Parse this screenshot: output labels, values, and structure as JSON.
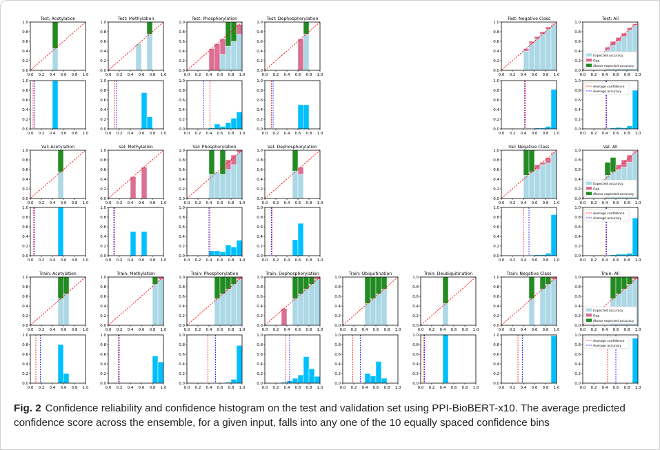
{
  "caption": {
    "label": "Fig. 2",
    "text": "Confidence reliability and confidence histogram on the test and validation set using PPI-BioBERT-x10. The average predicted confidence score across the ensemble, for a given input, falls into any one of the 10 equally spaced confidence bins"
  },
  "colors": {
    "expected": "#add8e6",
    "gap": "#db7093",
    "above": "#228b22",
    "hist": "#00bfff",
    "conf_line": "#ff0000",
    "acc_line": "#0000ff",
    "diag": "#ff0000"
  },
  "legend_labels": {
    "expected": "Expected accuracy",
    "gap": "Gap",
    "above": "Above expected accuracy",
    "avg_conf": "Average confidence",
    "avg_acc": "Average accuracy"
  },
  "x_ticks": [
    "0.0",
    "0.2",
    "0.4",
    "0.6",
    "0.8",
    "1.0"
  ],
  "y_ticks": [
    "0.0",
    "0.2",
    "0.4",
    "0.6",
    "0.8",
    "1.0"
  ],
  "chart_data": [
    {
      "type": "bar",
      "split": "Test",
      "title": "Test: Acetylation",
      "reliability": [
        {
          "bin": 0.45,
          "acc": 0.45,
          "conf": 1.0
        }
      ],
      "histogram": [
        {
          "bin": 0.45,
          "frac": 1.0
        }
      ],
      "avg_conf": 0.05,
      "avg_acc": 0.08
    },
    {
      "type": "bar",
      "split": "Test",
      "title": "Test: Methylation",
      "reliability": [
        {
          "bin": 0.55,
          "acc": 0.55,
          "conf": 0.55
        },
        {
          "bin": 0.75,
          "acc": 0.75,
          "conf": 1.0
        }
      ],
      "histogram": [
        {
          "bin": 0.65,
          "frac": 0.75
        },
        {
          "bin": 0.75,
          "frac": 0.25
        }
      ],
      "avg_conf": 0.12,
      "avg_acc": 0.15
    },
    {
      "type": "bar",
      "split": "Test",
      "title": "Test: Phosphorylation",
      "reliability": [
        {
          "bin": 0.45,
          "acc": 0.0,
          "conf": 0.45
        },
        {
          "bin": 0.55,
          "acc": 0.0,
          "conf": 0.55
        },
        {
          "bin": 0.65,
          "acc": 0.33,
          "conf": 0.65
        },
        {
          "bin": 0.75,
          "acc": 0.5,
          "conf": 1.0
        },
        {
          "bin": 0.85,
          "acc": 0.6,
          "conf": 1.0
        },
        {
          "bin": 0.95,
          "acc": 0.75,
          "conf": 0.95
        }
      ],
      "histogram": [
        {
          "bin": 0.45,
          "frac": 0.02
        },
        {
          "bin": 0.55,
          "frac": 0.1
        },
        {
          "bin": 0.65,
          "frac": 0.05
        },
        {
          "bin": 0.75,
          "frac": 0.13
        },
        {
          "bin": 0.85,
          "frac": 0.22
        },
        {
          "bin": 0.95,
          "frac": 0.35
        }
      ],
      "avg_conf": 0.42,
      "avg_acc": 0.3
    },
    {
      "type": "bar",
      "split": "Test",
      "title": "Test: Dephosphorylation",
      "reliability": [
        {
          "bin": 0.65,
          "acc": 0.0,
          "conf": 0.65
        },
        {
          "bin": 0.75,
          "acc": 0.75,
          "conf": 1.0
        }
      ],
      "histogram": [
        {
          "bin": 0.65,
          "frac": 0.5
        },
        {
          "bin": 0.75,
          "frac": 0.5
        }
      ],
      "avg_conf": 0.12,
      "avg_acc": 0.15
    },
    {
      "type": "bar",
      "split": "Test",
      "title": "Test: Negative Class",
      "reliability": [
        {
          "bin": 0.45,
          "acc": 0.4,
          "conf": 0.45
        },
        {
          "bin": 0.55,
          "acc": 0.55,
          "conf": 0.6
        },
        {
          "bin": 0.65,
          "acc": 0.65,
          "conf": 0.7
        },
        {
          "bin": 0.75,
          "acc": 0.75,
          "conf": 0.8
        },
        {
          "bin": 0.85,
          "acc": 0.85,
          "conf": 0.9
        },
        {
          "bin": 0.95,
          "acc": 0.95,
          "conf": 0.97
        }
      ],
      "histogram": [
        {
          "bin": 0.45,
          "frac": 0.0
        },
        {
          "bin": 0.55,
          "frac": 0.01
        },
        {
          "bin": 0.65,
          "frac": 0.02
        },
        {
          "bin": 0.75,
          "frac": 0.02
        },
        {
          "bin": 0.85,
          "frac": 0.05
        },
        {
          "bin": 0.95,
          "frac": 0.82
        }
      ],
      "avg_conf": 0.42,
      "avg_acc": 0.43
    },
    {
      "type": "bar",
      "split": "Test",
      "title": "Test:  All",
      "reliability": [
        {
          "bin": 0.45,
          "acc": 0.42,
          "conf": 0.48
        },
        {
          "bin": 0.55,
          "acc": 0.52,
          "conf": 0.6
        },
        {
          "bin": 0.65,
          "acc": 0.6,
          "conf": 0.68
        },
        {
          "bin": 0.75,
          "acc": 0.7,
          "conf": 0.77
        },
        {
          "bin": 0.85,
          "acc": 0.83,
          "conf": 0.88
        },
        {
          "bin": 0.95,
          "acc": 0.93,
          "conf": 0.96
        }
      ],
      "histogram": [
        {
          "bin": 0.45,
          "frac": 0.0
        },
        {
          "bin": 0.55,
          "frac": 0.02
        },
        {
          "bin": 0.65,
          "frac": 0.03
        },
        {
          "bin": 0.75,
          "frac": 0.02
        },
        {
          "bin": 0.85,
          "frac": 0.06
        },
        {
          "bin": 0.95,
          "frac": 0.8
        }
      ],
      "avg_conf": 0.42,
      "avg_acc": 0.43
    },
    {
      "type": "bar",
      "split": "Val",
      "title": "Val: Acetylation",
      "reliability": [
        {
          "bin": 0.55,
          "acc": 0.55,
          "conf": 1.0
        }
      ],
      "histogram": [
        {
          "bin": 0.55,
          "frac": 1.0
        }
      ],
      "avg_conf": 0.06,
      "avg_acc": 0.08
    },
    {
      "type": "bar",
      "split": "Val",
      "title": "Val: Methylation",
      "reliability": [
        {
          "bin": 0.45,
          "acc": 0.0,
          "conf": 0.45
        },
        {
          "bin": 0.65,
          "acc": 0.0,
          "conf": 0.65
        }
      ],
      "histogram": [
        {
          "bin": 0.45,
          "frac": 0.5
        },
        {
          "bin": 0.65,
          "frac": 0.5
        }
      ],
      "avg_conf": 0.12,
      "avg_acc": 0.1
    },
    {
      "type": "bar",
      "split": "Val",
      "title": "Val: Phosphorylation",
      "reliability": [
        {
          "bin": 0.45,
          "acc": 0.5,
          "conf": 1.0
        },
        {
          "bin": 0.55,
          "acc": 0.55,
          "conf": 0.55
        },
        {
          "bin": 0.65,
          "acc": 0.5,
          "conf": 1.0
        },
        {
          "bin": 0.75,
          "acc": 0.6,
          "conf": 0.8
        },
        {
          "bin": 0.85,
          "acc": 0.7,
          "conf": 0.9
        },
        {
          "bin": 0.95,
          "acc": 0.95,
          "conf": 1.0
        }
      ],
      "histogram": [
        {
          "bin": 0.45,
          "frac": 0.1
        },
        {
          "bin": 0.55,
          "frac": 0.1
        },
        {
          "bin": 0.65,
          "frac": 0.08
        },
        {
          "bin": 0.75,
          "frac": 0.22
        },
        {
          "bin": 0.85,
          "frac": 0.18
        },
        {
          "bin": 0.95,
          "frac": 0.32
        }
      ],
      "avg_conf": 0.42,
      "avg_acc": 0.4
    },
    {
      "type": "bar",
      "split": "Val",
      "title": "Val: Dephosphorylation",
      "reliability": [
        {
          "bin": 0.55,
          "acc": 0.57,
          "conf": 1.0
        },
        {
          "bin": 0.65,
          "acc": 0.5,
          "conf": 0.65
        }
      ],
      "histogram": [
        {
          "bin": 0.55,
          "frac": 0.33
        },
        {
          "bin": 0.65,
          "frac": 0.67
        }
      ],
      "avg_conf": 0.13,
      "avg_acc": 0.12
    },
    {
      "type": "bar",
      "split": "Val",
      "title": "Val: Negative Class",
      "reliability": [
        {
          "bin": 0.45,
          "acc": 0.48,
          "conf": 1.0
        },
        {
          "bin": 0.55,
          "acc": 0.55,
          "conf": 1.0
        },
        {
          "bin": 0.65,
          "acc": 0.6,
          "conf": 0.7
        },
        {
          "bin": 0.75,
          "acc": 0.7,
          "conf": 0.75
        },
        {
          "bin": 0.85,
          "acc": 0.73,
          "conf": 0.85
        },
        {
          "bin": 0.95,
          "acc": 0.95,
          "conf": 0.97
        }
      ],
      "histogram": [
        {
          "bin": 0.45,
          "frac": 0.0
        },
        {
          "bin": 0.55,
          "frac": 0.01
        },
        {
          "bin": 0.65,
          "frac": 0.02
        },
        {
          "bin": 0.75,
          "frac": 0.02
        },
        {
          "bin": 0.85,
          "frac": 0.05
        },
        {
          "bin": 0.95,
          "frac": 0.85
        }
      ],
      "avg_conf": 0.4,
      "avg_acc": 0.5
    },
    {
      "type": "bar",
      "split": "Val",
      "title": "Val:  All",
      "reliability": [
        {
          "bin": 0.45,
          "acc": 0.48,
          "conf": 0.75
        },
        {
          "bin": 0.55,
          "acc": 0.55,
          "conf": 0.85
        },
        {
          "bin": 0.65,
          "acc": 0.6,
          "conf": 0.7
        },
        {
          "bin": 0.75,
          "acc": 0.65,
          "conf": 0.8
        },
        {
          "bin": 0.85,
          "acc": 0.75,
          "conf": 0.9
        },
        {
          "bin": 0.95,
          "acc": 0.95,
          "conf": 0.98
        }
      ],
      "histogram": [
        {
          "bin": 0.45,
          "frac": 0.0
        },
        {
          "bin": 0.55,
          "frac": 0.02
        },
        {
          "bin": 0.65,
          "frac": 0.03
        },
        {
          "bin": 0.75,
          "frac": 0.03
        },
        {
          "bin": 0.85,
          "frac": 0.05
        },
        {
          "bin": 0.95,
          "frac": 0.78
        }
      ],
      "avg_conf": 0.42,
      "avg_acc": 0.43
    },
    {
      "type": "bar",
      "split": "Train",
      "title": "Train: Acetylation",
      "reliability": [
        {
          "bin": 0.55,
          "acc": 0.55,
          "conf": 1.0
        },
        {
          "bin": 0.65,
          "acc": 0.65,
          "conf": 1.0
        }
      ],
      "histogram": [
        {
          "bin": 0.55,
          "frac": 0.8
        },
        {
          "bin": 0.65,
          "frac": 0.2
        }
      ],
      "avg_conf": 0.1,
      "avg_acc": 0.18
    },
    {
      "type": "bar",
      "split": "Train",
      "title": "Train: Methylation",
      "reliability": [
        {
          "bin": 0.85,
          "acc": 0.85,
          "conf": 1.0
        },
        {
          "bin": 0.95,
          "acc": 0.95,
          "conf": 1.0
        }
      ],
      "histogram": [
        {
          "bin": 0.85,
          "frac": 0.56
        },
        {
          "bin": 0.95,
          "frac": 0.44
        }
      ],
      "avg_conf": 0.18,
      "avg_acc": 0.2
    },
    {
      "type": "bar",
      "split": "Train",
      "title": "Train: Phosphorylation",
      "reliability": [
        {
          "bin": 0.55,
          "acc": 0.55,
          "conf": 1.0
        },
        {
          "bin": 0.65,
          "acc": 0.65,
          "conf": 1.0
        },
        {
          "bin": 0.75,
          "acc": 0.75,
          "conf": 1.0
        },
        {
          "bin": 0.85,
          "acc": 0.85,
          "conf": 1.0
        },
        {
          "bin": 0.95,
          "acc": 0.95,
          "conf": 1.0
        }
      ],
      "histogram": [
        {
          "bin": 0.75,
          "frac": 0.02
        },
        {
          "bin": 0.85,
          "frac": 0.08
        },
        {
          "bin": 0.95,
          "frac": 0.78
        }
      ],
      "avg_conf": 0.38,
      "avg_acc": 0.52
    },
    {
      "type": "bar",
      "split": "Train",
      "title": "Train: Dephosphorylation",
      "reliability": [
        {
          "bin": 0.35,
          "acc": 0.0,
          "conf": 0.35
        },
        {
          "bin": 0.55,
          "acc": 0.55,
          "conf": 1.0
        },
        {
          "bin": 0.65,
          "acc": 0.65,
          "conf": 1.0
        },
        {
          "bin": 0.75,
          "acc": 0.75,
          "conf": 1.0
        },
        {
          "bin": 0.85,
          "acc": 0.85,
          "conf": 1.0
        },
        {
          "bin": 0.95,
          "acc": 0.95,
          "conf": 1.0
        }
      ],
      "histogram": [
        {
          "bin": 0.35,
          "frac": 0.02
        },
        {
          "bin": 0.45,
          "frac": 0.05
        },
        {
          "bin": 0.55,
          "frac": 0.1
        },
        {
          "bin": 0.65,
          "frac": 0.17
        },
        {
          "bin": 0.75,
          "frac": 0.55
        },
        {
          "bin": 0.85,
          "frac": 0.3
        },
        {
          "bin": 0.95,
          "frac": 0.14
        }
      ],
      "avg_conf": 0.38,
      "avg_acc": 0.45
    },
    {
      "type": "bar",
      "split": "Train",
      "title": "Train: Ubiquitination",
      "reliability": [
        {
          "bin": 0.45,
          "acc": 0.45,
          "conf": 1.0
        },
        {
          "bin": 0.55,
          "acc": 0.55,
          "conf": 1.0
        },
        {
          "bin": 0.65,
          "acc": 0.65,
          "conf": 1.0
        },
        {
          "bin": 0.75,
          "acc": 0.75,
          "conf": 1.0
        }
      ],
      "histogram": [
        {
          "bin": 0.45,
          "frac": 0.2
        },
        {
          "bin": 0.55,
          "frac": 0.15
        },
        {
          "bin": 0.65,
          "frac": 0.45
        },
        {
          "bin": 0.75,
          "frac": 0.1
        }
      ],
      "avg_conf": 0.18,
      "avg_acc": 0.32
    },
    {
      "type": "bar",
      "split": "Train",
      "title": "Train: Deubiquitination",
      "reliability": [
        {
          "bin": 0.45,
          "acc": 0.45,
          "conf": 1.0
        }
      ],
      "histogram": [
        {
          "bin": 0.45,
          "frac": 1.0
        }
      ],
      "avg_conf": 0.05,
      "avg_acc": 0.07
    },
    {
      "type": "bar",
      "split": "Train",
      "title": "Train: Negative Class",
      "reliability": [
        {
          "bin": 0.55,
          "acc": 0.55,
          "conf": 1.0
        },
        {
          "bin": 0.75,
          "acc": 0.75,
          "conf": 1.0
        },
        {
          "bin": 0.85,
          "acc": 0.85,
          "conf": 1.0
        },
        {
          "bin": 0.95,
          "acc": 0.95,
          "conf": 1.0
        }
      ],
      "histogram": [
        {
          "bin": 0.95,
          "frac": 0.98
        }
      ],
      "avg_conf": 0.3,
      "avg_acc": 0.38
    },
    {
      "type": "bar",
      "split": "Train",
      "title": "Train:  All",
      "reliability": [
        {
          "bin": 0.55,
          "acc": 0.55,
          "conf": 1.0
        },
        {
          "bin": 0.65,
          "acc": 0.65,
          "conf": 1.0
        },
        {
          "bin": 0.75,
          "acc": 0.75,
          "conf": 1.0
        },
        {
          "bin": 0.85,
          "acc": 0.85,
          "conf": 1.0
        },
        {
          "bin": 0.95,
          "acc": 0.95,
          "conf": 1.0
        }
      ],
      "histogram": [
        {
          "bin": 0.95,
          "frac": 0.93
        }
      ],
      "avg_conf": 0.45,
      "avg_acc": 0.6
    }
  ]
}
